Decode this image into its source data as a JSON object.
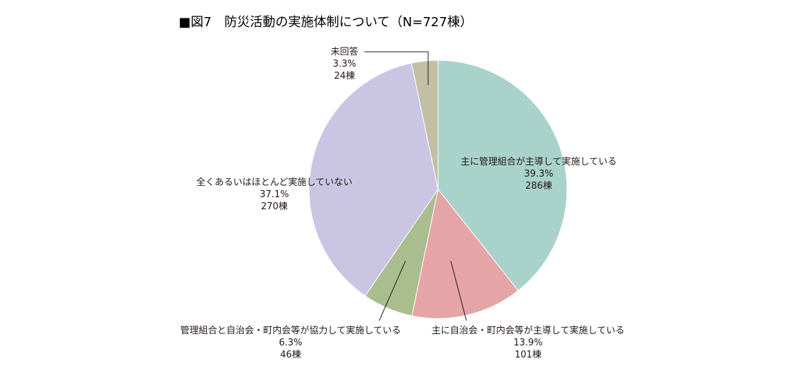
{
  "chart_data": {
    "type": "pie",
    "title": "■図7　防災活動の実施体制について（N=727棟）",
    "start_angle_deg": 0,
    "direction": "clockwise",
    "slices": [
      {
        "label": "主に管理組合が主導して実施している",
        "percent": 39.3,
        "display_percent": "39.3%",
        "count": 286,
        "display_count": "286棟",
        "color": "#a9d2cb"
      },
      {
        "label": "主に自治会・町内会等が主導して実施している",
        "percent": 13.9,
        "display_percent": "13.9%",
        "count": 101,
        "display_count": "101棟",
        "color": "#e5a4a5"
      },
      {
        "label": "管理組合と自治会・町内会等が協力して実施している",
        "percent": 6.3,
        "display_percent": "6.3%",
        "count": 46,
        "display_count": "46棟",
        "color": "#a9bd8e"
      },
      {
        "label": "全くあるいはほとんど実施していない",
        "percent": 37.1,
        "display_percent": "37.1%",
        "count": 270,
        "display_count": "270棟",
        "color": "#cac5e3"
      },
      {
        "label": "未回答",
        "percent": 3.3,
        "display_percent": "3.3%",
        "count": 24,
        "display_count": "24棟",
        "color": "#c3bfa7"
      }
    ]
  }
}
